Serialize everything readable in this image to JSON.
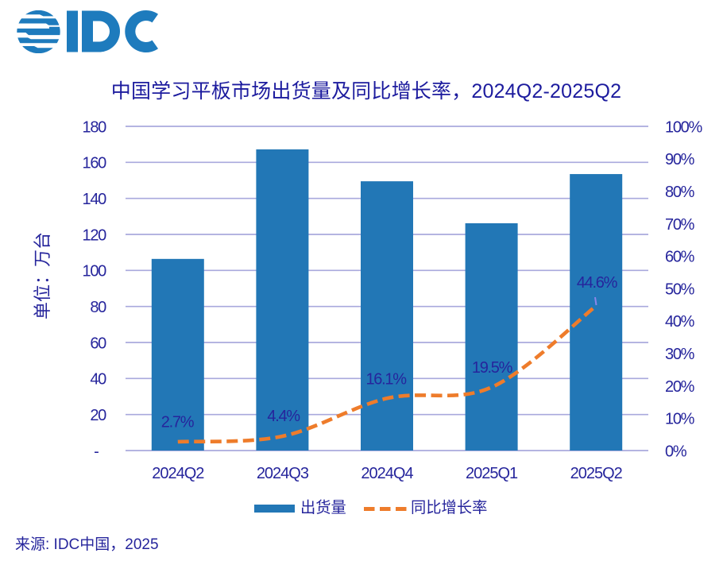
{
  "logo": {
    "text": "IDC",
    "color": "#1e7bbd",
    "globe_icon": "striped-globe"
  },
  "title": {
    "text": "中国学习平板市场出货量及同比增长率，2024Q2-2025Q2",
    "color": "#1c1b9e"
  },
  "source_note": "来源: IDC中国，2025",
  "colors": {
    "bar_blue": "#2277b6",
    "line_orange": "#ee7c2b",
    "text_navy": "#26259c",
    "gridline": "#a9a9dd",
    "leader_artifact": "#8c86ea"
  },
  "chart_data": {
    "type": "bar",
    "subtype": "combo-bar-line",
    "title": "中国学习平板市场出货量及同比增长率，2024Q2-2025Q2",
    "categories": [
      "2024Q2",
      "2024Q3",
      "2024Q4",
      "2025Q1",
      "2025Q2"
    ],
    "series": [
      {
        "name": "出货量",
        "type": "bar",
        "axis": "left",
        "values": [
          106.4,
          167.2,
          149.5,
          126.2,
          153.5
        ],
        "color": "#2277b6"
      },
      {
        "name": "同比增长率",
        "type": "line",
        "axis": "right",
        "dashed": true,
        "smooth": true,
        "values": [
          2.7,
          4.4,
          16.1,
          19.5,
          44.6
        ],
        "point_labels": [
          "2.7%",
          "4.4%",
          "16.1%",
          "19.5%",
          "44.6%"
        ],
        "color": "#ee7c2b"
      }
    ],
    "left_axis": {
      "label": "单位：万台",
      "min": 0,
      "max": 180,
      "tick_step": 20,
      "tick_labels": [
        "180",
        "160",
        "140",
        "120",
        "100",
        "80",
        "60",
        "40",
        "20",
        "-"
      ]
    },
    "right_axis": {
      "min": 0,
      "max": 100,
      "tick_step": 10,
      "tick_labels": [
        "100%",
        "90%",
        "80%",
        "70%",
        "60%",
        "50%",
        "40%",
        "30%",
        "20%",
        "10%",
        "0%"
      ]
    },
    "grid": "horizontal",
    "legend_position": "bottom",
    "xlabel": "",
    "ylabel": "单位：万台"
  }
}
